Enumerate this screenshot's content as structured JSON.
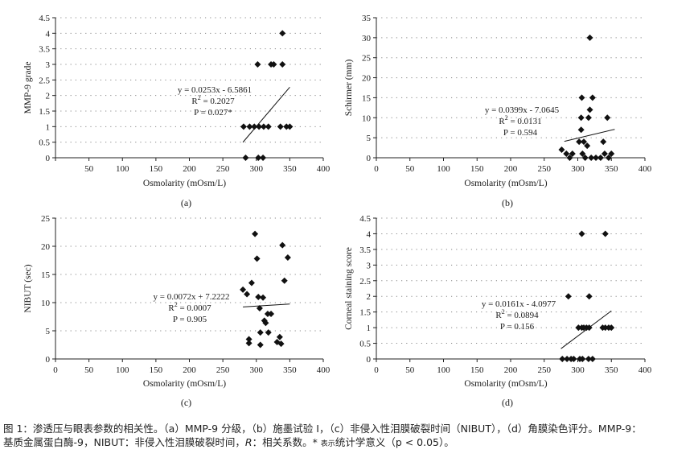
{
  "chart_data": [
    {
      "type": "scatter",
      "panel_label": "(a)",
      "xlabel": "Osmolarity (mOsm/L)",
      "ylabel": "MMP-9 grade",
      "xlim": [
        0,
        400
      ],
      "ylim": [
        0,
        4.5
      ],
      "xticks": [
        0,
        50,
        100,
        150,
        200,
        250,
        300,
        350,
        400
      ],
      "yticks": [
        0,
        0.5,
        1,
        1.5,
        2,
        2.5,
        3,
        3.5,
        4,
        4.5
      ],
      "ytick_labels": [
        "0",
        "0.5",
        "1",
        "1.5",
        "2",
        "2.5",
        "3",
        "3.5",
        "4",
        "4.5"
      ],
      "x_hidden_zero": true,
      "points": [
        [
          284,
          0
        ],
        [
          303,
          0
        ],
        [
          310,
          0
        ],
        [
          281,
          1
        ],
        [
          290,
          1
        ],
        [
          297,
          1
        ],
        [
          304,
          1
        ],
        [
          311,
          1
        ],
        [
          318,
          1
        ],
        [
          336,
          1
        ],
        [
          345,
          1
        ],
        [
          350,
          1
        ],
        [
          302,
          3
        ],
        [
          322,
          3
        ],
        [
          326,
          3
        ],
        [
          339,
          3
        ],
        [
          339,
          4
        ]
      ],
      "trend": {
        "x": [
          280,
          350
        ],
        "slope": 0.0253,
        "intercept": -6.5861
      },
      "equation": [
        "y = 0.0253x - 6.5861",
        "R",
        "2",
        " = 0.2027",
        "P = 0.027*"
      ],
      "grid": "dotted-horizontal"
    },
    {
      "type": "scatter",
      "panel_label": "(b)",
      "xlabel": "Osmolarity (mOsm/L)",
      "ylabel": "Schirmer (mm)",
      "xlim": [
        0,
        400
      ],
      "ylim": [
        0,
        35
      ],
      "xticks": [
        0,
        50,
        100,
        150,
        200,
        250,
        300,
        350,
        400
      ],
      "yticks": [
        0,
        5,
        10,
        15,
        20,
        25,
        30,
        35
      ],
      "ytick_labels": [
        "0",
        "5",
        "10",
        "15",
        "20",
        "25",
        "30",
        "35"
      ],
      "x_hidden_zero": false,
      "points": [
        [
          276,
          2
        ],
        [
          283,
          1
        ],
        [
          288,
          0
        ],
        [
          292,
          1
        ],
        [
          302,
          4
        ],
        [
          305,
          10
        ],
        [
          306,
          15
        ],
        [
          305,
          7
        ],
        [
          307,
          1
        ],
        [
          309,
          4
        ],
        [
          311,
          0
        ],
        [
          314,
          3
        ],
        [
          316,
          10
        ],
        [
          318,
          12
        ],
        [
          318,
          30
        ],
        [
          320,
          0
        ],
        [
          322,
          15
        ],
        [
          327,
          0
        ],
        [
          334,
          0
        ],
        [
          338,
          4
        ],
        [
          340,
          1
        ],
        [
          344,
          10
        ],
        [
          346,
          0
        ],
        [
          350,
          1
        ]
      ],
      "trend": {
        "x": [
          280,
          355
        ],
        "slope": 0.0399,
        "intercept": -7.0645
      },
      "equation": [
        "y = 0.0399x - 7.0645",
        "R",
        "2",
        " = 0.0131",
        "P = 0.594"
      ],
      "grid": "dotted-horizontal"
    },
    {
      "type": "scatter",
      "panel_label": "(c)",
      "xlabel": "Osmolarity (mOsm/L)",
      "ylabel": "NIBUT (sec)",
      "xlim": [
        0,
        400
      ],
      "ylim": [
        0,
        25
      ],
      "xticks": [
        0,
        50,
        100,
        150,
        200,
        250,
        300,
        350,
        400
      ],
      "yticks": [
        0,
        5,
        10,
        15,
        20,
        25
      ],
      "ytick_labels": [
        "0",
        "5",
        "10",
        "15",
        "20",
        "25"
      ],
      "x_hidden_zero": false,
      "points": [
        [
          280,
          12.3
        ],
        [
          286,
          11.5
        ],
        [
          289,
          3.5
        ],
        [
          289,
          2.8
        ],
        [
          293,
          13.5
        ],
        [
          298,
          22.2
        ],
        [
          301,
          17.8
        ],
        [
          303,
          11
        ],
        [
          305,
          9
        ],
        [
          306,
          4.7
        ],
        [
          306,
          2.5
        ],
        [
          310,
          10.9
        ],
        [
          312,
          6.8
        ],
        [
          314,
          6.4
        ],
        [
          317,
          8
        ],
        [
          318,
          4.7
        ],
        [
          322,
          8
        ],
        [
          331,
          3
        ],
        [
          335,
          3.9
        ],
        [
          337,
          2.7
        ],
        [
          339,
          20.2
        ],
        [
          342,
          13.9
        ],
        [
          347,
          18
        ]
      ],
      "trend": {
        "x": [
          280,
          350
        ],
        "slope": 0.0072,
        "intercept": 7.2222
      },
      "equation": [
        "y = 0.0072x + 7.2222",
        "R",
        "2",
        " = 0.0007",
        "P = 0.905"
      ],
      "grid": "dotted-horizontal"
    },
    {
      "type": "scatter",
      "panel_label": "(d)",
      "xlabel": "Osmolarity (mOsm/L)",
      "ylabel": "Corneal staining score",
      "xlim": [
        0,
        400
      ],
      "ylim": [
        0,
        4.5
      ],
      "xticks": [
        0,
        50,
        100,
        150,
        200,
        250,
        300,
        350,
        400
      ],
      "yticks": [
        0,
        0.5,
        1,
        1.5,
        2,
        2.5,
        3,
        3.5,
        4,
        4.5
      ],
      "ytick_labels": [
        "0",
        "0.5",
        "1",
        "1.5",
        "2",
        "2.5",
        "3",
        "3.5",
        "4",
        "4.5"
      ],
      "x_hidden_zero": false,
      "points": [
        [
          277,
          0
        ],
        [
          284,
          0
        ],
        [
          290,
          0
        ],
        [
          294,
          0
        ],
        [
          303,
          0
        ],
        [
          307,
          0
        ],
        [
          316,
          0
        ],
        [
          322,
          0
        ],
        [
          286,
          2
        ],
        [
          317,
          2
        ],
        [
          301,
          1
        ],
        [
          306,
          1
        ],
        [
          309,
          1
        ],
        [
          313,
          1
        ],
        [
          317,
          1
        ],
        [
          337,
          1
        ],
        [
          341,
          1
        ],
        [
          346,
          1
        ],
        [
          350,
          1
        ],
        [
          306,
          4
        ],
        [
          341,
          4
        ]
      ],
      "trend": {
        "x": [
          275,
          350
        ],
        "slope": 0.0161,
        "intercept": -4.0977
      },
      "equation": [
        "y = 0.0161x - 4.0977",
        "R",
        "2",
        " = 0.0894",
        "P = 0.156"
      ],
      "grid": "dotted-horizontal"
    }
  ],
  "caption": {
    "line1": "图 1：渗透压与眼表参数的相关性。（a）MMP-9 分级，（b）施墨试验 I，（c）非侵入性泪膜破裂时间（NIBUT），（d）角膜染色评分。MMP-9：",
    "line2_a": "基质金属蛋白酶-9，NIBUT：非侵入性泪膜破裂时间，",
    "line2_r": "R",
    "line2_b": "：相关系数。* ",
    "line2_small": "表示",
    "line2_c": "统计学意义（p < 0.05）。"
  },
  "colors": {
    "marker": "#111111",
    "trend": "#111111",
    "grid": "#888888",
    "axis": "#222222"
  }
}
